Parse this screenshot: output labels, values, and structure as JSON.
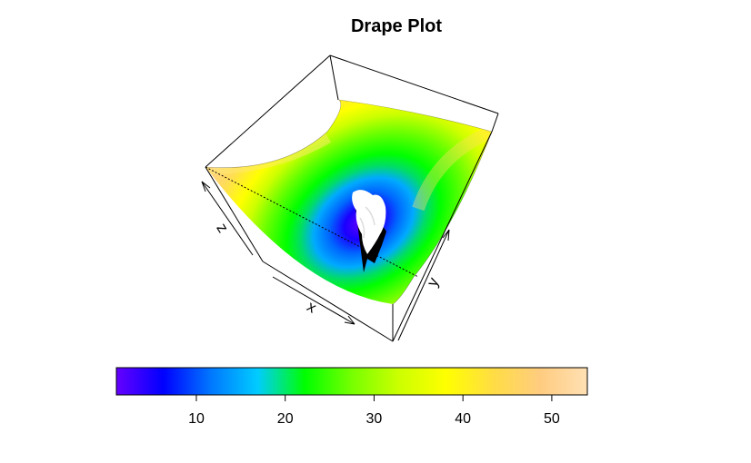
{
  "chart_data": {
    "type": "surface",
    "title": "Drape Plot",
    "axes": {
      "x": "x",
      "y": "y",
      "z": "z"
    },
    "colorkey": {
      "range": [
        1,
        54
      ],
      "ticks": [
        "10",
        "20",
        "30",
        "40",
        "50"
      ],
      "tick_values": [
        10,
        20,
        30,
        40,
        50
      ],
      "colors": [
        "#6600ff",
        "#0000ff",
        "#0077ff",
        "#00ccff",
        "#00ff00",
        "#77ff00",
        "#ccff00",
        "#ffff00",
        "#ffdd44",
        "#ffcc80",
        "#ffe0b3"
      ]
    },
    "surface": {
      "description_values": {
        "min_value": 1,
        "max_value": 54
      }
    }
  }
}
